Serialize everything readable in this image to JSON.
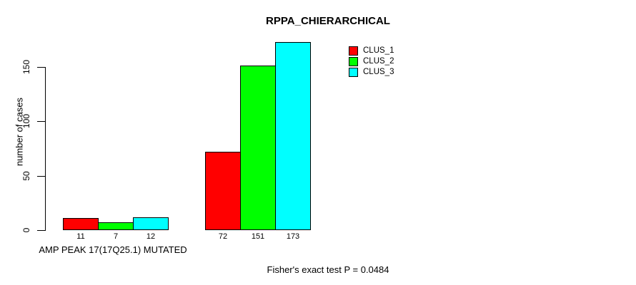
{
  "chart_data": {
    "type": "bar",
    "title": "RPPA_CHIERARCHICAL",
    "ylabel": "number of cases",
    "xlabel": "AMP PEAK 17(17Q25.1) MUTATED",
    "annotation": "Fisher's exact test P = 0.0484",
    "categories": [
      "AMP PEAK 17(17Q25.1) MUTATED",
      ""
    ],
    "series": [
      {
        "name": "CLUS_1",
        "color": "#ff0000",
        "values": [
          11,
          72
        ]
      },
      {
        "name": "CLUS_2",
        "color": "#00ff00",
        "values": [
          7,
          151
        ]
      },
      {
        "name": "CLUS_3",
        "color": "#00ffff",
        "values": [
          12,
          173
        ]
      }
    ],
    "y_ticks": [
      0,
      50,
      100,
      150
    ],
    "ylim": [
      0,
      175
    ],
    "bar_border_color": "#000000",
    "background_color": "#ffffff",
    "grid": false,
    "legend_position": "top-right"
  }
}
